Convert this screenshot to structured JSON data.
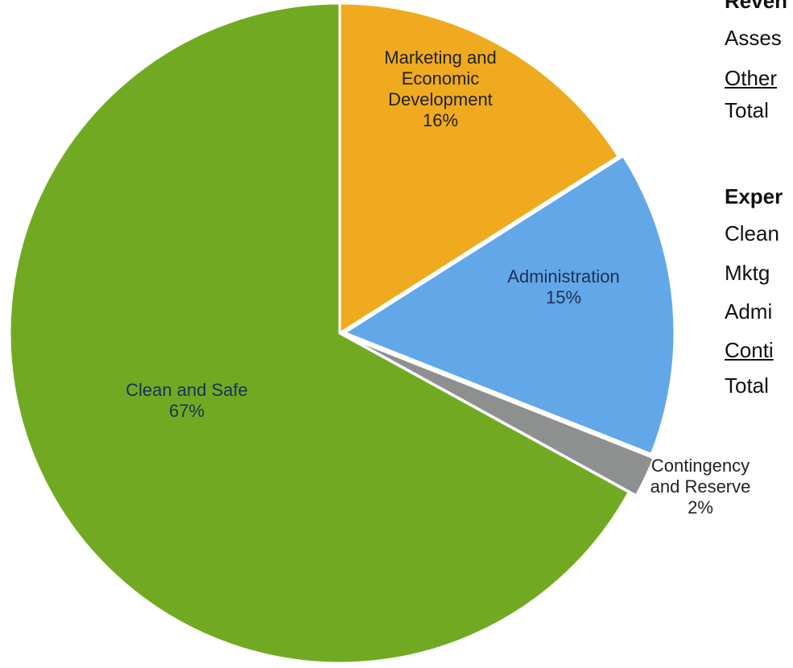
{
  "chart_data": {
    "type": "pie",
    "slices": [
      {
        "name": "Clean and Safe",
        "value": 67,
        "label": "67%",
        "color": "#71aa22"
      },
      {
        "name": "Marketing and Economic Development",
        "value": 16,
        "label": "16%",
        "color": "#efaa1f"
      },
      {
        "name": "Administration",
        "value": 15,
        "label": "15%",
        "color": "#62a7e8"
      },
      {
        "name": "Contingency and Reserve",
        "value": 2,
        "label": "2%",
        "color": "#8e9090"
      }
    ],
    "slice_label_lines": [
      [
        "Clean and Safe",
        "67%"
      ],
      [
        "Marketing and",
        "Economic",
        "Development",
        "16%"
      ],
      [
        "Administration",
        "15%"
      ],
      [
        "Contingency",
        "and Reserve",
        "2%"
      ]
    ]
  },
  "side_panel": {
    "revenue_heading": "Reven",
    "revenue_rows": [
      "Asses",
      "Other",
      "Total"
    ],
    "expense_heading": "Exper",
    "expense_rows": [
      "Clean",
      "Mktg",
      "Admi",
      "Conti",
      "Total"
    ]
  }
}
